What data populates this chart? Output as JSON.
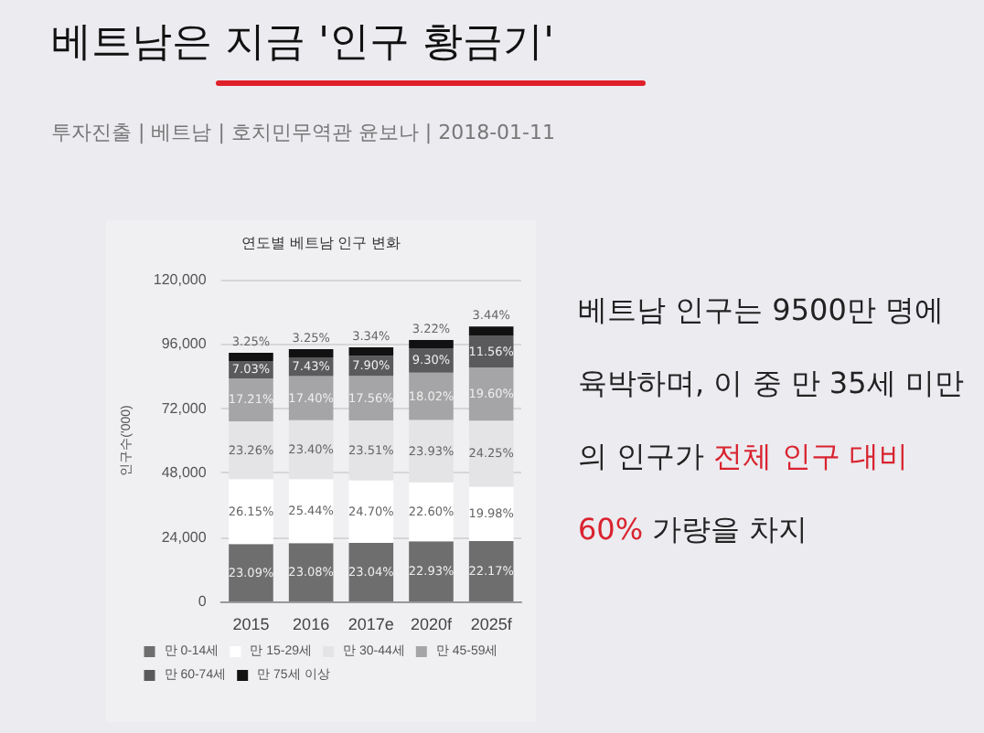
{
  "chart_data": {
    "type": "bar",
    "stacked": true,
    "title": "연도별 베트남 인구 변화",
    "ylabel": "인구수('000)",
    "categories": [
      "2015",
      "2016",
      "2017e",
      "2020f",
      "2025f"
    ],
    "series": [
      {
        "name": "만 0-14세",
        "color": "#6e6e6e",
        "values": [
          21400,
          21700,
          21800,
          22400,
          22500
        ]
      },
      {
        "name": "만 15-29세",
        "color": "#ffffff",
        "values": [
          24200,
          23900,
          23400,
          22000,
          20300
        ]
      },
      {
        "name": "만 30-44세",
        "color": "#e4e4e6",
        "values": [
          21600,
          22000,
          22300,
          23300,
          24600
        ]
      },
      {
        "name": "만 45-59세",
        "color": "#a5a5a7",
        "values": [
          16000,
          16400,
          16600,
          17600,
          19900
        ]
      },
      {
        "name": "만 60-74세",
        "color": "#5a5a5c",
        "values": [
          6500,
          7000,
          7500,
          9100,
          11700
        ]
      },
      {
        "name": "만 75세 이상",
        "color": "#111111",
        "values": [
          3000,
          3100,
          3200,
          3100,
          3500
        ]
      }
    ],
    "ylim": [
      0,
      120000
    ],
    "yticks": [
      0,
      {
        "value": 24000,
        "label": "24,000"
      },
      {
        "value": 48000,
        "label": "48,000"
      },
      {
        "value": 72000,
        "label": "72,000"
      },
      {
        "value": 96000,
        "label": "96,000"
      },
      {
        "value": 120000,
        "label": "120,000"
      }
    ],
    "grid": "y",
    "legend": "bottom",
    "annotations": [
      "베트남은 지금 '인구 황금기'",
      "투자진출 | 베트남 | 호치민무역관 윤보나 | 2018-01-11",
      "베트남 인구는 9500만 명에 육박하며, 이 중 만 35세 미만의 인구가 ",
      "전체 인구 대비 60%",
      " 가량을 차지",
      {
        "text": "23.09%",
        "x": "2015",
        "y": 21400
      },
      {
        "text": "26.15%",
        "x": "2015",
        "y": 45600
      },
      {
        "text": "23.26%",
        "x": "2015",
        "y": 67200
      },
      {
        "text": "17.21%",
        "x": "2015",
        "y": 83200
      },
      {
        "text": "7.03%",
        "x": "2015",
        "y": 89700
      },
      {
        "text": "3.25%",
        "x": "2015",
        "y": 92700
      },
      {
        "text": "23.08%",
        "x": "2016",
        "y": 21700
      },
      {
        "text": "25.44%",
        "x": "2016",
        "y": 45600
      },
      {
        "text": "23.40%",
        "x": "2016",
        "y": 67600
      },
      {
        "text": "17.40%",
        "x": "2016",
        "y": 84000
      },
      {
        "text": "7.43%",
        "x": "2016",
        "y": 91000
      },
      {
        "text": "3.25%",
        "x": "2016",
        "y": 94100
      },
      {
        "text": "23.04%",
        "x": "2017e",
        "y": 21800
      },
      {
        "text": "24.70%",
        "x": "2017e",
        "y": 45200
      },
      {
        "text": "23.51%",
        "x": "2017e",
        "y": 67500
      },
      {
        "text": "17.56%",
        "x": "2017e",
        "y": 84100
      },
      {
        "text": "7.90%",
        "x": "2017e",
        "y": 91600
      },
      {
        "text": "3.34%",
        "x": "2017e",
        "y": 94800
      },
      {
        "text": "22.93%",
        "x": "2020f",
        "y": 22400
      },
      {
        "text": "22.60%",
        "x": "2020f",
        "y": 44400
      },
      {
        "text": "23.93%",
        "x": "2020f",
        "y": 67700
      },
      {
        "text": "18.02%",
        "x": "2020f",
        "y": 85300
      },
      {
        "text": "9.30%",
        "x": "2020f",
        "y": 94400
      },
      {
        "text": "3.22%",
        "x": "2020f",
        "y": 97500
      },
      {
        "text": "22.17%",
        "x": "2025f",
        "y": 22500
      },
      {
        "text": "19.98%",
        "x": "2025f",
        "y": 42800
      },
      {
        "text": "24.25%",
        "x": "2025f",
        "y": 67400
      },
      {
        "text": "19.60%",
        "x": "2025f",
        "y": 87300
      },
      {
        "text": "11.56%",
        "x": "2025f",
        "y": 99000
      },
      {
        "text": "3.44%",
        "x": "2025f",
        "y": 102500
      }
    ]
  }
}
